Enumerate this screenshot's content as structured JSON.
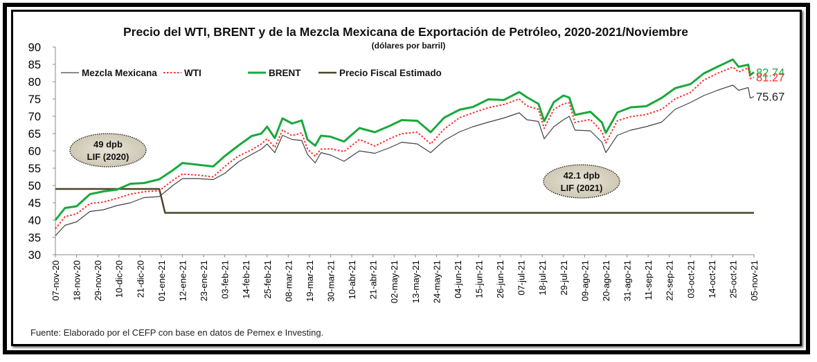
{
  "chart_data": {
    "type": "line",
    "title": "Precio del WTI, BRENT y de la Mezcla Mexicana de Exportación de Petróleo, 2020-2021/Noviembre",
    "subtitle": "(dólares por barril)",
    "ylim": [
      30,
      90
    ],
    "yticks": [
      30,
      35,
      40,
      45,
      50,
      55,
      60,
      65,
      70,
      75,
      80,
      85,
      90
    ],
    "xlim": [
      "2020-11-07",
      "2021-11-05"
    ],
    "xticks": [
      "07-nov-20",
      "18-nov-20",
      "29-nov-20",
      "10-dic-20",
      "21-dic-20",
      "01-ene-21",
      "12-ene-21",
      "23-ene-21",
      "03-feb-21",
      "14-feb-21",
      "25-feb-21",
      "08-mar-21",
      "19-mar-21",
      "30-mar-21",
      "10-abr-21",
      "21-abr-21",
      "02-may-21",
      "13-may-21",
      "24-may-21",
      "04-jun-21",
      "15-jun-21",
      "26-jun-21",
      "07-jul-21",
      "18-jul-21",
      "29-jul-21",
      "09-ago-21",
      "20-ago-21",
      "31-ago-21",
      "11-sep-21",
      "22-sep-21",
      "03-oct-21",
      "14-oct-21",
      "25-oct-21",
      "05-nov-21"
    ],
    "grid": false,
    "legend_position": "top-left",
    "series": [
      {
        "name": "Mezcla Mexicana",
        "color": "#404040",
        "points": [
          [
            "2020-11-07",
            35.5
          ],
          [
            "2020-11-12",
            38.5
          ],
          [
            "2020-11-18",
            39.5
          ],
          [
            "2020-11-25",
            42.5
          ],
          [
            "2020-12-02",
            43
          ],
          [
            "2020-12-09",
            44.2
          ],
          [
            "2020-12-16",
            45
          ],
          [
            "2020-12-23",
            46.5
          ],
          [
            "2020-12-31",
            46.8
          ],
          [
            "2021-01-07",
            50
          ],
          [
            "2021-01-12",
            52
          ],
          [
            "2021-01-20",
            52
          ],
          [
            "2021-01-28",
            51.7
          ],
          [
            "2021-02-03",
            53.5
          ],
          [
            "2021-02-10",
            56.8
          ],
          [
            "2021-02-17",
            59
          ],
          [
            "2021-02-22",
            60.5
          ],
          [
            "2021-02-25",
            62
          ],
          [
            "2021-03-01",
            59.5
          ],
          [
            "2021-03-05",
            64.5
          ],
          [
            "2021-03-10",
            63.3
          ],
          [
            "2021-03-15",
            63
          ],
          [
            "2021-03-18",
            59
          ],
          [
            "2021-03-22",
            56.5
          ],
          [
            "2021-03-25",
            59.5
          ],
          [
            "2021-03-30",
            58.8
          ],
          [
            "2021-04-06",
            57
          ],
          [
            "2021-04-14",
            60
          ],
          [
            "2021-04-22",
            59.3
          ],
          [
            "2021-04-30",
            61
          ],
          [
            "2021-05-06",
            62.5
          ],
          [
            "2021-05-14",
            62
          ],
          [
            "2021-05-21",
            59.5
          ],
          [
            "2021-05-28",
            63
          ],
          [
            "2021-06-05",
            65.5
          ],
          [
            "2021-06-12",
            67
          ],
          [
            "2021-06-20",
            68.3
          ],
          [
            "2021-06-28",
            69.5
          ],
          [
            "2021-07-06",
            71
          ],
          [
            "2021-07-10",
            69
          ],
          [
            "2021-07-16",
            68.5
          ],
          [
            "2021-07-19",
            63.5
          ],
          [
            "2021-07-24",
            67
          ],
          [
            "2021-07-29",
            69
          ],
          [
            "2021-08-01",
            70
          ],
          [
            "2021-08-04",
            66
          ],
          [
            "2021-08-12",
            65.8
          ],
          [
            "2021-08-18",
            62.5
          ],
          [
            "2021-08-20",
            59.5
          ],
          [
            "2021-08-26",
            64.5
          ],
          [
            "2021-09-02",
            66
          ],
          [
            "2021-09-10",
            67
          ],
          [
            "2021-09-18",
            68.3
          ],
          [
            "2021-09-25",
            72
          ],
          [
            "2021-10-03",
            74
          ],
          [
            "2021-10-10",
            76
          ],
          [
            "2021-10-17",
            77.5
          ],
          [
            "2021-10-25",
            79
          ],
          [
            "2021-10-28",
            77.5
          ],
          [
            "2021-11-02",
            78.3
          ],
          [
            "2021-11-03",
            75.3
          ],
          [
            "2021-11-05",
            75.67
          ]
        ]
      },
      {
        "name": "WTI",
        "color": "#ff2a2a",
        "points": [
          [
            "2020-11-07",
            37.5
          ],
          [
            "2020-11-12",
            41
          ],
          [
            "2020-11-18",
            41.8
          ],
          [
            "2020-11-25",
            44.8
          ],
          [
            "2020-12-02",
            45.2
          ],
          [
            "2020-12-09",
            46.3
          ],
          [
            "2020-12-16",
            47.5
          ],
          [
            "2020-12-23",
            48.2
          ],
          [
            "2020-12-31",
            48.5
          ],
          [
            "2021-01-07",
            51.5
          ],
          [
            "2021-01-12",
            53.3
          ],
          [
            "2021-01-20",
            53
          ],
          [
            "2021-01-28",
            52.5
          ],
          [
            "2021-02-03",
            55.5
          ],
          [
            "2021-02-10",
            58.5
          ],
          [
            "2021-02-17",
            60.3
          ],
          [
            "2021-02-22",
            62
          ],
          [
            "2021-02-25",
            63.5
          ],
          [
            "2021-03-01",
            61
          ],
          [
            "2021-03-05",
            66
          ],
          [
            "2021-03-10",
            64.4
          ],
          [
            "2021-03-15",
            65.2
          ],
          [
            "2021-03-18",
            60.5
          ],
          [
            "2021-03-22",
            58.5
          ],
          [
            "2021-03-25",
            60.5
          ],
          [
            "2021-03-30",
            60.6
          ],
          [
            "2021-04-06",
            59.8
          ],
          [
            "2021-04-14",
            63.3
          ],
          [
            "2021-04-22",
            61.4
          ],
          [
            "2021-04-30",
            63.6
          ],
          [
            "2021-05-06",
            65
          ],
          [
            "2021-05-14",
            65.4
          ],
          [
            "2021-05-21",
            62
          ],
          [
            "2021-05-28",
            66.3
          ],
          [
            "2021-06-05",
            69.6
          ],
          [
            "2021-06-12",
            71
          ],
          [
            "2021-06-20",
            72.5
          ],
          [
            "2021-06-28",
            73.4
          ],
          [
            "2021-07-06",
            75
          ],
          [
            "2021-07-10",
            73
          ],
          [
            "2021-07-16",
            72
          ],
          [
            "2021-07-19",
            66.5
          ],
          [
            "2021-07-24",
            72
          ],
          [
            "2021-07-29",
            73.6
          ],
          [
            "2021-08-01",
            73.9
          ],
          [
            "2021-08-04",
            68.2
          ],
          [
            "2021-08-12",
            69.1
          ],
          [
            "2021-08-18",
            65.5
          ],
          [
            "2021-08-20",
            62.3
          ],
          [
            "2021-08-26",
            68.7
          ],
          [
            "2021-09-02",
            69.9
          ],
          [
            "2021-09-10",
            70.5
          ],
          [
            "2021-09-18",
            72
          ],
          [
            "2021-09-25",
            75
          ],
          [
            "2021-10-03",
            76.9
          ],
          [
            "2021-10-10",
            80.5
          ],
          [
            "2021-10-17",
            82.4
          ],
          [
            "2021-10-25",
            84.2
          ],
          [
            "2021-10-28",
            82.8
          ],
          [
            "2021-11-02",
            84
          ],
          [
            "2021-11-03",
            80.9
          ],
          [
            "2021-11-05",
            81.27
          ]
        ]
      },
      {
        "name": "BRENT",
        "color": "#1aa83b",
        "points": [
          [
            "2020-11-07",
            40
          ],
          [
            "2020-11-12",
            43.5
          ],
          [
            "2020-11-18",
            44
          ],
          [
            "2020-11-25",
            47.5
          ],
          [
            "2020-12-02",
            48.3
          ],
          [
            "2020-12-09",
            48.8
          ],
          [
            "2020-12-16",
            50.5
          ],
          [
            "2020-12-23",
            50.7
          ],
          [
            "2020-12-31",
            51.8
          ],
          [
            "2021-01-07",
            54.4
          ],
          [
            "2021-01-12",
            56.5
          ],
          [
            "2021-01-20",
            56
          ],
          [
            "2021-01-28",
            55.5
          ],
          [
            "2021-02-03",
            58.5
          ],
          [
            "2021-02-10",
            61.5
          ],
          [
            "2021-02-17",
            64.3
          ],
          [
            "2021-02-22",
            65
          ],
          [
            "2021-02-25",
            67
          ],
          [
            "2021-03-01",
            63.7
          ],
          [
            "2021-03-05",
            69.4
          ],
          [
            "2021-03-10",
            67.9
          ],
          [
            "2021-03-15",
            68.8
          ],
          [
            "2021-03-18",
            63.3
          ],
          [
            "2021-03-22",
            61.5
          ],
          [
            "2021-03-25",
            64.4
          ],
          [
            "2021-03-30",
            64.1
          ],
          [
            "2021-04-06",
            62.7
          ],
          [
            "2021-04-14",
            66.6
          ],
          [
            "2021-04-22",
            65.4
          ],
          [
            "2021-04-30",
            67.3
          ],
          [
            "2021-05-06",
            68.9
          ],
          [
            "2021-05-14",
            68.7
          ],
          [
            "2021-05-21",
            65.4
          ],
          [
            "2021-05-28",
            69.6
          ],
          [
            "2021-06-05",
            71.9
          ],
          [
            "2021-06-12",
            72.7
          ],
          [
            "2021-06-20",
            74.9
          ],
          [
            "2021-06-28",
            74.7
          ],
          [
            "2021-07-06",
            77
          ],
          [
            "2021-07-10",
            75.5
          ],
          [
            "2021-07-16",
            73.6
          ],
          [
            "2021-07-19",
            68.6
          ],
          [
            "2021-07-24",
            74.1
          ],
          [
            "2021-07-29",
            76
          ],
          [
            "2021-08-01",
            75.4
          ],
          [
            "2021-08-04",
            70.4
          ],
          [
            "2021-08-12",
            71.3
          ],
          [
            "2021-08-18",
            68.2
          ],
          [
            "2021-08-20",
            65.2
          ],
          [
            "2021-08-26",
            71.1
          ],
          [
            "2021-09-02",
            72.6
          ],
          [
            "2021-09-10",
            72.9
          ],
          [
            "2021-09-18",
            75.3
          ],
          [
            "2021-09-25",
            78.1
          ],
          [
            "2021-10-03",
            79.3
          ],
          [
            "2021-10-10",
            82.4
          ],
          [
            "2021-10-17",
            84.3
          ],
          [
            "2021-10-25",
            86.4
          ],
          [
            "2021-10-28",
            84.3
          ],
          [
            "2021-11-02",
            84.9
          ],
          [
            "2021-11-03",
            81.9
          ],
          [
            "2021-11-05",
            82.74
          ]
        ]
      },
      {
        "name": "Precio Fiscal Estimado",
        "color": "#4a4326",
        "points": [
          [
            "2020-11-07",
            49
          ],
          [
            "2020-12-31",
            49
          ],
          [
            "2021-01-03",
            42.1
          ],
          [
            "2021-11-05",
            42.1
          ]
        ]
      }
    ],
    "end_labels": [
      {
        "series": "BRENT",
        "text": "82.74",
        "color": "#1aa83b",
        "value": 82.74
      },
      {
        "series": "WTI",
        "text": "81.27",
        "color": "#ff2a2a",
        "value": 81.27
      },
      {
        "series": "Mezcla Mexicana",
        "text": "75.67",
        "color": "#222222",
        "value": 75.67
      }
    ],
    "annotations": [
      {
        "line1": "49 dpb",
        "line2": "LIF (2020)"
      },
      {
        "line1": "42.1 dpb",
        "line2": "LIF (2021)"
      }
    ],
    "source": "Fuente: Elaborado por el CEFP con base en datos de Pemex e Investing."
  }
}
